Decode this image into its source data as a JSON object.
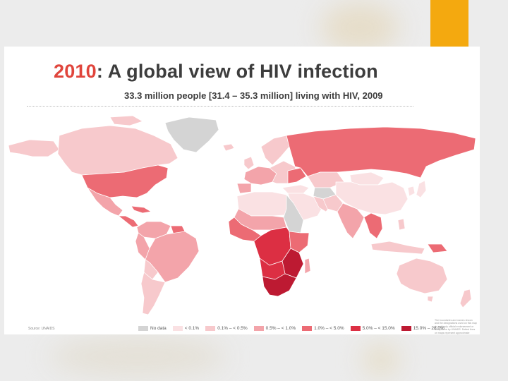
{
  "slide": {
    "title_year": "2010",
    "title_rest": ": A global view of HIV infection",
    "subtitle": "33.3 million people [31.4 – 35.3 million] living with HIV, 2009",
    "source": "Source: UNAIDS",
    "fineprint": "The boundaries and names shown and the designations used on this map do not imply official endorsement or acceptance by UNAIDS. Dotted lines on maps represent approximate border lines for which there may not yet be full agreement."
  },
  "legend": [
    {
      "label": "No data",
      "color": "#d4d4d4"
    },
    {
      "label": "< 0.1%",
      "color": "#fae1e3"
    },
    {
      "label": "0.1% – < 0.5%",
      "color": "#f7c9cc"
    },
    {
      "label": "0.5% – < 1.0%",
      "color": "#f3a4aa"
    },
    {
      "label": "1.0% – < 5.0%",
      "color": "#ec6b74"
    },
    {
      "label": "5.0% – < 15.0%",
      "color": "#dc2f43"
    },
    {
      "label": "15.0% – 28.0%",
      "color": "#bd1a32"
    }
  ],
  "colors": {
    "accent": "#f4a90f",
    "title_year": "#e0453c",
    "text": "#3d3d3d"
  }
}
